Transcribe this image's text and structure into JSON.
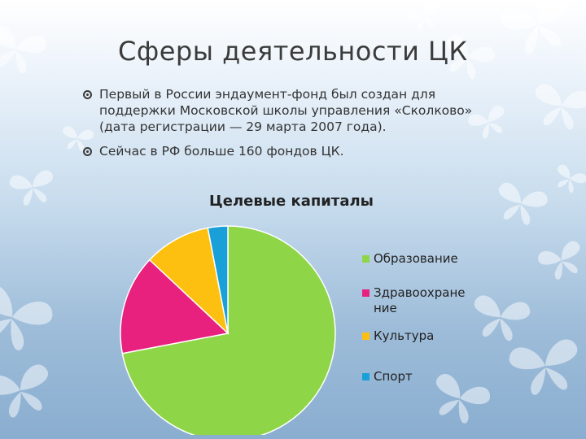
{
  "slide": {
    "title": "Сферы деятельности ЦК",
    "bullets": [
      "Первый в России эндаумент-фонд был создан для поддержки Московской школы управления «Сколково» (дата регистрации — 29 марта 2007 года).",
      "Сейчас в РФ больше 160 фондов ЦК."
    ]
  },
  "chart_data": {
    "type": "pie",
    "title": "Целевые капиталы",
    "categories": [
      "Образование",
      "Здравоохранение",
      "Культура",
      "Спорт"
    ],
    "legend_labels": [
      [
        "Образование"
      ],
      [
        "Здравоохране",
        "ние"
      ],
      [
        "Культура"
      ],
      [
        "Спорт"
      ]
    ],
    "values": [
      72,
      15,
      10,
      3
    ],
    "colors": [
      "#8ed647",
      "#e8207e",
      "#fdc010",
      "#1aa0d8"
    ],
    "legend": "right"
  }
}
